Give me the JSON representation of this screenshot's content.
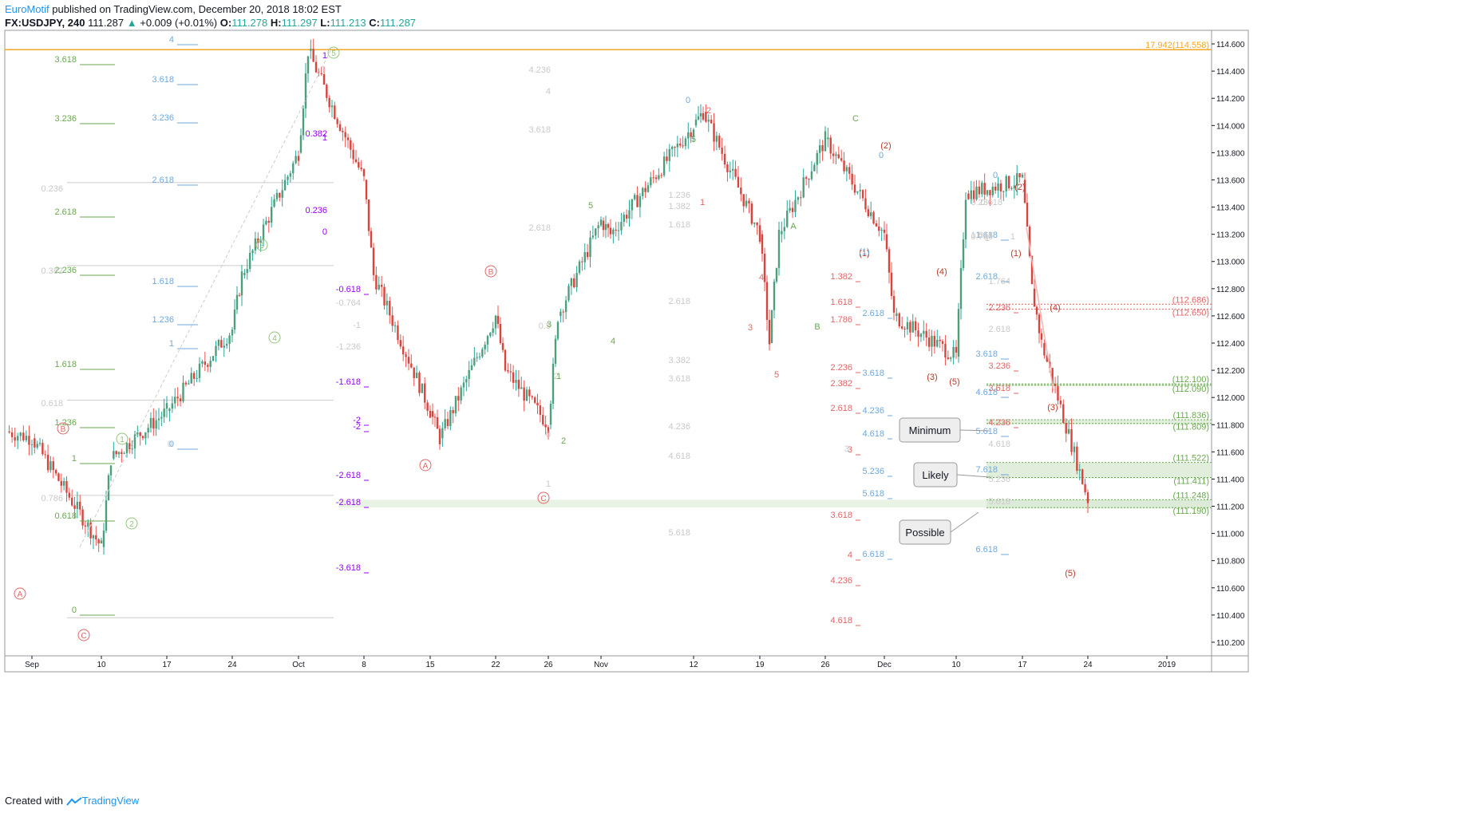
{
  "header": {
    "author": "EuroMotif",
    "published_text": "published on TradingView.com, December 20, 2018 18:02 EST",
    "symbol": "FX:USDJPY, 240",
    "last": "111.287",
    "change_arrow": "▲",
    "change": "+0.009 (+0.01%)",
    "o_label": "O:",
    "o_value": "111.278",
    "h_label": "H:",
    "h_value": "111.297",
    "l_label": "L:",
    "l_value": "111.213",
    "c_label": "C:",
    "c_value": "111.287"
  },
  "footer": {
    "created_with": "Created with",
    "brand": "TradingView"
  },
  "colors": {
    "up": "#26a69a",
    "up_body": "#4f9e7b",
    "down": "#ef5350",
    "down_body": "#d8443d",
    "orange": "#f5a623",
    "fib_green": "#6aa84f",
    "fib_blue": "#6fa8dc",
    "fib_purple": "#9900ff",
    "fib_red": "#e06666",
    "zone_green": "#d9ead3"
  },
  "chart_data": {
    "type": "candlestick",
    "ylim": [
      110.1,
      114.7
    ],
    "y_ticks": [
      "114.600",
      "114.400",
      "114.200",
      "114.000",
      "113.800",
      "113.600",
      "113.400",
      "113.200",
      "113.000",
      "112.800",
      "112.600",
      "112.400",
      "112.200",
      "112.000",
      "111.800",
      "111.600",
      "111.400",
      "111.200",
      "111.000",
      "110.800",
      "110.600",
      "110.400",
      "110.200"
    ],
    "x_labels": [
      "Sep",
      "10",
      "17",
      "24",
      "Oct",
      "8",
      "15",
      "22",
      "26",
      "Nov",
      "12",
      "19",
      "26",
      "Dec",
      "10",
      "17",
      "24",
      "2019"
    ],
    "price_path": [
      [
        "Sep",
        111.7
      ],
      [
        "10",
        110.9
      ],
      [
        "10",
        111.55
      ],
      [
        "17",
        111.9
      ],
      [
        "24",
        112.5
      ],
      [
        "24",
        112.9
      ],
      [
        "Oct",
        113.8
      ],
      [
        "Oct",
        114.55
      ],
      [
        "8",
        113.6
      ],
      [
        "8",
        112.9
      ],
      [
        "15",
        111.9
      ],
      [
        "15",
        111.7
      ],
      [
        "22",
        112.6
      ],
      [
        "22",
        112.2
      ],
      [
        "26",
        111.8
      ],
      [
        "26",
        112.6
      ],
      [
        "Nov",
        113.3
      ],
      [
        "Nov",
        113.2
      ],
      [
        "12",
        114.0
      ],
      [
        "12",
        114.1
      ],
      [
        "19",
        113.2
      ],
      [
        "19",
        112.4
      ],
      [
        "26",
        113.2
      ],
      [
        "26",
        113.9
      ],
      [
        "Dec",
        113.2
      ],
      [
        "Dec",
        112.6
      ],
      [
        "10",
        112.3
      ],
      [
        "10",
        113.5
      ],
      [
        "17",
        113.6
      ],
      [
        "17",
        112.8
      ],
      [
        "17",
        112.4
      ],
      [
        "24",
        111.25
      ]
    ],
    "horizontal_levels": [
      {
        "label": "17.942(114.558)",
        "price": 114.558,
        "color": "#f5a623"
      },
      {
        "label": "(112.686)",
        "price": 112.686,
        "color": "#e06666"
      },
      {
        "label": "(112.650)",
        "price": 112.65,
        "color": "#e06666"
      },
      {
        "label": "(112.100)",
        "price": 112.1,
        "color": "#6aa84f"
      },
      {
        "label": "(112.090)",
        "price": 112.09,
        "color": "#6aa84f"
      },
      {
        "label": "(111.836)",
        "price": 111.836,
        "color": "#6aa84f"
      },
      {
        "label": "(111.809)",
        "price": 111.809,
        "color": "#6aa84f"
      },
      {
        "label": "(111.522)",
        "price": 111.522,
        "color": "#6aa84f"
      },
      {
        "label": "(111.411)",
        "price": 111.411,
        "color": "#6aa84f"
      },
      {
        "label": "(111.248)",
        "price": 111.248,
        "color": "#6aa84f"
      },
      {
        "label": "(111.190)",
        "price": 111.19,
        "color": "#6aa84f"
      }
    ],
    "callouts": [
      {
        "label": "Minimum"
      },
      {
        "label": "Likely"
      },
      {
        "label": "Possible"
      }
    ],
    "fib_green_1": [
      "3.618",
      "3.236",
      "2.618",
      "2.236",
      "1.618",
      "1.236",
      "1",
      "0.618",
      "0"
    ],
    "fib_blue_1": [
      "4",
      "3.618",
      "3.236",
      "2.618",
      "1.618",
      "1.236",
      "1",
      "0"
    ],
    "fib_purple": [
      "1",
      "0.382",
      "1",
      "0.236",
      "0",
      "-0.618",
      "-2",
      "-2.618",
      "-3.618",
      "-1.618",
      "-2.618",
      "-2"
    ],
    "fib_red_1": [
      "1.382",
      "1.618",
      "1.786",
      "2.236",
      "2.382",
      "2.618",
      "3",
      "3.618",
      "4",
      "4.236",
      "4.618"
    ],
    "fib_blue_2": [
      "2.618",
      "3.618",
      "4.236",
      "4.618",
      "5.236",
      "5.618",
      "6.618"
    ],
    "fib_blue_3": [
      "1.618",
      "2.618",
      "3.618",
      "4.618",
      "5.618",
      "6.618",
      "7.618"
    ],
    "fib_red_2": [
      "2.236",
      "3.236",
      "3.618",
      "4.236"
    ],
    "fib_faint": [
      "4.236",
      "4",
      "3.618",
      "2.618",
      "3",
      "1.236",
      "1.382",
      "1.618",
      "2.618",
      "3.382",
      "3.618",
      "4.236",
      "4.618",
      "5.618",
      "0.236",
      "0.382",
      "0.618",
      "0.786",
      "-0.764",
      "-1",
      "-1.236",
      "1.764",
      "2.618",
      "4.618",
      "5.236",
      "5.618",
      "1",
      "0.5",
      "0",
      "1",
      "2",
      "0",
      "0.236",
      "0.618",
      "0.786",
      "1.618",
      "1"
    ],
    "wave_labels_green": [
      "5",
      "1",
      "2",
      "3",
      "4",
      "5",
      "1",
      "2",
      "3",
      "4",
      "5",
      "A",
      "B",
      "C"
    ],
    "wave_labels_red": [
      "A",
      "B",
      "C",
      "A",
      "B",
      "C",
      "1",
      "2",
      "3",
      "4",
      "5",
      "(1)",
      "(2)",
      "(3)",
      "(4)",
      "(5)",
      "(1)",
      "(2)",
      "(3)",
      "(4)",
      "(5)"
    ],
    "wave_labels_blue": [
      "0",
      "0",
      "0",
      "(1)"
    ]
  }
}
